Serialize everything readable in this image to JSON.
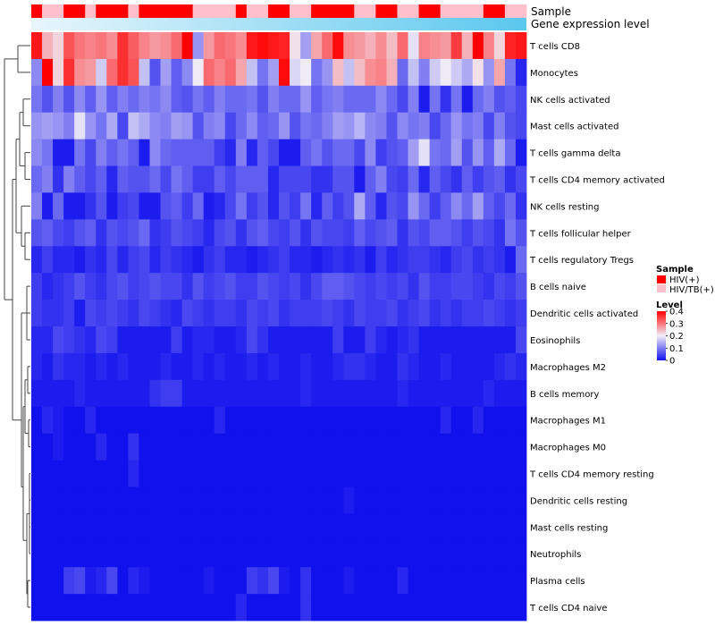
{
  "chart_data": {
    "type": "heatmap",
    "annotation_tracks": [
      "Sample",
      "Gene expression level"
    ],
    "rows": [
      "T cells CD8",
      "Monocytes",
      "NK cells activated",
      "Mast cells activated",
      "T cells gamma delta",
      "T cells CD4 memory activated",
      "NK cells resting",
      "T cells follicular helper",
      "T cells regulatory  Tregs",
      "B cells naive",
      "Dendritic cells activated",
      "Eosinophils",
      "Macrophages M2",
      "B cells memory",
      "Macrophages M1",
      "Macrophages M0",
      "T cells CD4 memory resting",
      "Dendritic cells resting",
      "Mast cells resting",
      "Neutrophils",
      "Plasma cells",
      "T cells CD4 naive"
    ],
    "sample_groups": [
      "HIV(+)",
      "HIV/TB(+)",
      "HIV/TB(+)",
      "HIV(+)",
      "HIV(+)",
      "HIV/TB(+)",
      "HIV(+)",
      "HIV(+)",
      "HIV(+)",
      "HIV/TB(+)",
      "HIV(+)",
      "HIV(+)",
      "HIV(+)",
      "HIV(+)",
      "HIV(+)",
      "HIV/TB(+)",
      "HIV/TB(+)",
      "HIV/TB(+)",
      "HIV/TB(+)",
      "HIV(+)",
      "HIV/TB(+)",
      "HIV/TB(+)",
      "HIV(+)",
      "HIV(+)",
      "HIV/TB(+)",
      "HIV/TB(+)",
      "HIV(+)",
      "HIV(+)",
      "HIV(+)",
      "HIV(+)",
      "HIV/TB(+)",
      "HIV/TB(+)",
      "HIV(+)",
      "HIV(+)",
      "HIV/TB(+)",
      "HIV/TB(+)",
      "HIV(+)",
      "HIV(+)",
      "HIV/TB(+)",
      "HIV/TB(+)",
      "HIV/TB(+)",
      "HIV/TB(+)",
      "HIV(+)",
      "HIV(+)",
      "HIV/TB(+)",
      "HIV/TB(+)"
    ],
    "values": [
      [
        0.38,
        0.25,
        0.22,
        0.33,
        0.3,
        0.29,
        0.3,
        0.28,
        0.36,
        0.32,
        0.29,
        0.27,
        0.28,
        0.31,
        0.4,
        0.12,
        0.27,
        0.31,
        0.3,
        0.28,
        0.38,
        0.39,
        0.38,
        0.37,
        0.21,
        0.13,
        0.26,
        0.31,
        0.39,
        0.28,
        0.27,
        0.25,
        0.28,
        0.24,
        0.31,
        0.19,
        0.29,
        0.28,
        0.27,
        0.35,
        0.25,
        0.4,
        0.29,
        0.22,
        0.37,
        0.38
      ],
      [
        0.11,
        0.4,
        0.22,
        0.36,
        0.28,
        0.27,
        0.17,
        0.31,
        0.36,
        0.33,
        0.16,
        0.06,
        0.13,
        0.07,
        0.11,
        0.2,
        0.31,
        0.29,
        0.31,
        0.26,
        0.16,
        0.09,
        0.13,
        0.39,
        0.18,
        0.2,
        0.09,
        0.12,
        0.24,
        0.16,
        0.24,
        0.28,
        0.29,
        0.25,
        0.08,
        0.16,
        0.1,
        0.17,
        0.2,
        0.17,
        0.14,
        0.21,
        0.12,
        0.26,
        0.09,
        0.02
      ],
      [
        0.09,
        0.06,
        0.1,
        0.06,
        0.11,
        0.07,
        0.12,
        0.07,
        0.1,
        0.08,
        0.1,
        0.09,
        0.11,
        0.07,
        0.06,
        0.09,
        0.07,
        0.1,
        0.08,
        0.08,
        0.09,
        0.06,
        0.1,
        0.08,
        0.08,
        0.12,
        0.07,
        0.09,
        0.1,
        0.08,
        0.08,
        0.08,
        0.11,
        0.08,
        0.05,
        0.1,
        0.01,
        0.09,
        0.03,
        0.09,
        0.01,
        0.08,
        0.1,
        0.06,
        0.07,
        0.05
      ],
      [
        0.12,
        0.13,
        0.12,
        0.1,
        0.19,
        0.12,
        0.09,
        0.14,
        0.05,
        0.16,
        0.14,
        0.11,
        0.1,
        0.13,
        0.12,
        0.06,
        0.1,
        0.11,
        0.05,
        0.08,
        0.11,
        0.07,
        0.08,
        0.12,
        0.06,
        0.09,
        0.08,
        0.1,
        0.13,
        0.12,
        0.15,
        0.11,
        0.1,
        0.06,
        0.11,
        0.09,
        0.1,
        0.05,
        0.08,
        0.12,
        0.09,
        0.1,
        0.05,
        0.1,
        0.06,
        0.05
      ],
      [
        0.11,
        0.09,
        0.01,
        0.01,
        0.09,
        0.05,
        0.1,
        0.07,
        0.09,
        0.07,
        0.01,
        0.11,
        0.08,
        0.07,
        0.07,
        0.07,
        0.07,
        0.04,
        0.02,
        0.1,
        0.02,
        0.07,
        0.05,
        0.01,
        0.01,
        0.07,
        0.09,
        0.06,
        0.08,
        0.08,
        0.05,
        0.11,
        0.04,
        0.06,
        0.07,
        0.13,
        0.19,
        0.09,
        0.08,
        0.13,
        0.06,
        0.12,
        0.07,
        0.14,
        0.08,
        0.01
      ],
      [
        0.08,
        0.1,
        0.03,
        0.1,
        0.07,
        0.05,
        0.07,
        0.02,
        0.07,
        0.06,
        0.06,
        0.08,
        0.05,
        0.09,
        0.07,
        0.04,
        0.04,
        0.07,
        0.05,
        0.07,
        0.07,
        0.07,
        0.02,
        0.05,
        0.05,
        0.05,
        0.03,
        0.03,
        0.06,
        0.06,
        0.01,
        0.07,
        0.1,
        0.05,
        0.04,
        0.08,
        0.02,
        0.07,
        0.05,
        0.03,
        0.07,
        0.04,
        0.06,
        0.07,
        0.03,
        0.05
      ],
      [
        0.1,
        0.01,
        0.08,
        0.01,
        0.01,
        0.03,
        0.06,
        0.01,
        0.04,
        0.05,
        0.01,
        0.01,
        0.06,
        0.07,
        0.04,
        0.08,
        0.01,
        0.02,
        0.05,
        0.09,
        0.04,
        0.06,
        0.02,
        0.06,
        0.04,
        0.09,
        0.02,
        0.07,
        0.04,
        0.06,
        0.14,
        0.07,
        0.02,
        0.06,
        0.05,
        0.12,
        0.08,
        0.04,
        0.07,
        0.11,
        0.08,
        0.13,
        0.07,
        0.05,
        0.08,
        0.03
      ],
      [
        0.06,
        0.07,
        0.05,
        0.04,
        0.06,
        0.07,
        0.03,
        0.06,
        0.05,
        0.06,
        0.08,
        0.03,
        0.04,
        0.06,
        0.05,
        0.04,
        0.02,
        0.05,
        0.06,
        0.03,
        0.06,
        0.07,
        0.05,
        0.04,
        0.06,
        0.03,
        0.06,
        0.05,
        0.05,
        0.04,
        0.07,
        0.05,
        0.06,
        0.07,
        0.03,
        0.06,
        0.05,
        0.07,
        0.07,
        0.06,
        0.04,
        0.06,
        0.05,
        0.03,
        0.09,
        0.06
      ],
      [
        0.02,
        0.04,
        0.02,
        0.02,
        0.01,
        0.03,
        0.02,
        0.05,
        0.02,
        0.04,
        0.05,
        0.02,
        0.04,
        0.03,
        0.02,
        0.01,
        0.03,
        0.04,
        0.02,
        0.02,
        0.01,
        0.02,
        0.03,
        0.04,
        0.02,
        0.02,
        0.01,
        0.02,
        0.03,
        0.02,
        0.03,
        0.01,
        0.04,
        0.02,
        0.03,
        0.04,
        0.04,
        0.03,
        0.02,
        0.04,
        0.05,
        0.03,
        0.04,
        0.03,
        0.01,
        0.08
      ],
      [
        0.04,
        0.02,
        0.03,
        0.04,
        0.06,
        0.04,
        0.03,
        0.05,
        0.06,
        0.04,
        0.05,
        0.06,
        0.05,
        0.05,
        0.03,
        0.06,
        0.04,
        0.05,
        0.06,
        0.04,
        0.04,
        0.06,
        0.05,
        0.04,
        0.05,
        0.03,
        0.05,
        0.07,
        0.07,
        0.06,
        0.05,
        0.04,
        0.05,
        0.04,
        0.05,
        0.03,
        0.06,
        0.04,
        0.04,
        0.05,
        0.05,
        0.04,
        0.03,
        0.05,
        0.04,
        0.06
      ],
      [
        0.04,
        0.03,
        0.03,
        0.04,
        0.01,
        0.05,
        0.04,
        0.05,
        0.04,
        0.03,
        0.05,
        0.04,
        0.03,
        0.02,
        0.05,
        0.04,
        0.03,
        0.04,
        0.04,
        0.03,
        0.05,
        0.04,
        0.05,
        0.03,
        0.04,
        0.04,
        0.04,
        0.05,
        0.04,
        0.03,
        0.05,
        0.04,
        0.04,
        0.05,
        0.03,
        0.04,
        0.05,
        0.03,
        0.04,
        0.03,
        0.04,
        0.04,
        0.05,
        0.04,
        0.03,
        0.04
      ],
      [
        0.02,
        0.02,
        0.05,
        0.04,
        0.03,
        0.02,
        0.05,
        0.04,
        0.01,
        0.01,
        0.01,
        0.01,
        0.01,
        0.04,
        0.01,
        0.02,
        0.02,
        0.01,
        0.01,
        0.02,
        0.05,
        0.03,
        0.01,
        0.01,
        0.01,
        0.01,
        0.01,
        0.01,
        0.04,
        0.01,
        0.01,
        0.04,
        0.02,
        0.01,
        0.02,
        0.03,
        0.01,
        0.01,
        0.01,
        0.01,
        0.01,
        0.01,
        0.01,
        0.01,
        0.01,
        0.05
      ],
      [
        0.02,
        0.01,
        0.03,
        0.02,
        0.02,
        0.01,
        0.02,
        0.01,
        0.02,
        0.01,
        0.01,
        0.01,
        0.02,
        0.01,
        0.01,
        0.02,
        0.01,
        0.02,
        0.01,
        0.01,
        0.02,
        0.01,
        0.02,
        0.01,
        0.01,
        0.02,
        0.01,
        0.01,
        0.02,
        0.03,
        0.03,
        0.02,
        0.01,
        0.01,
        0.03,
        0.02,
        0.01,
        0.01,
        0.02,
        0.01,
        0.01,
        0.01,
        0.01,
        0.02,
        0.03,
        0.02
      ],
      [
        0.01,
        0.01,
        0.01,
        0.01,
        0.02,
        0.01,
        0.01,
        0.01,
        0.01,
        0.01,
        0.01,
        0.03,
        0.04,
        0.04,
        0.01,
        0.01,
        0.01,
        0.01,
        0.01,
        0.01,
        0.01,
        0.01,
        0.01,
        0.01,
        0.01,
        0.02,
        0.01,
        0.01,
        0.01,
        0.01,
        0.01,
        0.01,
        0.01,
        0.01,
        0.02,
        0.01,
        0.01,
        0.01,
        0.01,
        0.01,
        0.01,
        0.01,
        0.02,
        0.01,
        0.01,
        0.01
      ],
      [
        0.0,
        0.02,
        0.01,
        0.0,
        0.0,
        0.02,
        0.0,
        0.0,
        0.0,
        0.0,
        0.0,
        0.0,
        0.0,
        0.0,
        0.0,
        0.0,
        0.0,
        0.02,
        0.0,
        0.0,
        0.0,
        0.0,
        0.0,
        0.0,
        0.0,
        0.0,
        0.0,
        0.0,
        0.0,
        0.0,
        0.0,
        0.0,
        0.0,
        0.0,
        0.0,
        0.0,
        0.0,
        0.0,
        0.02,
        0.0,
        0.0,
        0.02,
        0.0,
        0.0,
        0.0,
        0.0
      ],
      [
        0.0,
        0.0,
        0.01,
        0.0,
        0.0,
        0.0,
        0.02,
        0.0,
        0.0,
        0.03,
        0.0,
        0.0,
        0.0,
        0.0,
        0.0,
        0.0,
        0.0,
        0.0,
        0.0,
        0.0,
        0.0,
        0.0,
        0.0,
        0.0,
        0.0,
        0.0,
        0.0,
        0.0,
        0.0,
        0.0,
        0.0,
        0.0,
        0.0,
        0.0,
        0.0,
        0.0,
        0.0,
        0.0,
        0.0,
        0.0,
        0.0,
        0.0,
        0.0,
        0.0,
        0.0,
        0.0
      ],
      [
        0.0,
        0.0,
        0.0,
        0.0,
        0.0,
        0.0,
        0.0,
        0.0,
        0.0,
        0.02,
        0.0,
        0.0,
        0.0,
        0.0,
        0.0,
        0.0,
        0.0,
        0.0,
        0.0,
        0.0,
        0.0,
        0.0,
        0.0,
        0.0,
        0.0,
        0.0,
        0.0,
        0.0,
        0.0,
        0.0,
        0.0,
        0.0,
        0.0,
        0.0,
        0.0,
        0.0,
        0.0,
        0.0,
        0.0,
        0.0,
        0.0,
        0.0,
        0.0,
        0.0,
        0.0,
        0.0
      ],
      [
        0.0,
        0.0,
        0.0,
        0.0,
        0.0,
        0.0,
        0.0,
        0.0,
        0.0,
        0.0,
        0.0,
        0.0,
        0.0,
        0.0,
        0.0,
        0.0,
        0.0,
        0.0,
        0.0,
        0.0,
        0.0,
        0.0,
        0.0,
        0.0,
        0.0,
        0.0,
        0.0,
        0.0,
        0.0,
        0.01,
        0.0,
        0.0,
        0.0,
        0.0,
        0.0,
        0.0,
        0.0,
        0.0,
        0.0,
        0.0,
        0.0,
        0.0,
        0.0,
        0.0,
        0.0,
        0.0
      ],
      [
        0.0,
        0.0,
        0.0,
        0.0,
        0.0,
        0.0,
        0.0,
        0.0,
        0.0,
        0.0,
        0.0,
        0.0,
        0.0,
        0.0,
        0.0,
        0.0,
        0.0,
        0.0,
        0.0,
        0.0,
        0.0,
        0.0,
        0.0,
        0.0,
        0.0,
        0.0,
        0.0,
        0.0,
        0.0,
        0.0,
        0.0,
        0.0,
        0.0,
        0.0,
        0.0,
        0.0,
        0.0,
        0.0,
        0.0,
        0.0,
        0.0,
        0.0,
        0.0,
        0.0,
        0.0,
        0.0
      ],
      [
        0.0,
        0.0,
        0.0,
        0.0,
        0.0,
        0.0,
        0.0,
        0.0,
        0.0,
        0.0,
        0.0,
        0.0,
        0.0,
        0.0,
        0.0,
        0.0,
        0.0,
        0.0,
        0.0,
        0.0,
        0.0,
        0.0,
        0.0,
        0.0,
        0.0,
        0.0,
        0.0,
        0.0,
        0.0,
        0.0,
        0.0,
        0.0,
        0.0,
        0.0,
        0.0,
        0.0,
        0.0,
        0.0,
        0.0,
        0.0,
        0.0,
        0.0,
        0.0,
        0.0,
        0.0,
        0.0
      ],
      [
        0.0,
        0.0,
        0.0,
        0.04,
        0.05,
        0.01,
        0.02,
        0.05,
        0.0,
        0.02,
        0.01,
        0.0,
        0.0,
        0.0,
        0.0,
        0.0,
        0.01,
        0.0,
        0.0,
        0.0,
        0.04,
        0.03,
        0.05,
        0.01,
        0.0,
        0.03,
        0.0,
        0.0,
        0.0,
        0.01,
        0.0,
        0.0,
        0.0,
        0.0,
        0.02,
        0.0,
        0.0,
        0.0,
        0.0,
        0.0,
        0.0,
        0.0,
        0.0,
        0.0,
        0.0,
        0.0
      ],
      [
        0.0,
        0.0,
        0.0,
        0.0,
        0.0,
        0.0,
        0.0,
        0.0,
        0.0,
        0.0,
        0.0,
        0.0,
        0.0,
        0.0,
        0.0,
        0.0,
        0.0,
        0.0,
        0.0,
        0.02,
        0.0,
        0.0,
        0.0,
        0.0,
        0.0,
        0.03,
        0.0,
        0.0,
        0.0,
        0.0,
        0.0,
        0.0,
        0.0,
        0.0,
        0.0,
        0.0,
        0.0,
        0.0,
        0.0,
        0.0,
        0.0,
        0.0,
        0.0,
        0.0,
        0.0,
        0.0
      ]
    ],
    "color_scale": {
      "min": 0,
      "max": 0.4,
      "stops": [
        {
          "value": 0,
          "color": "#1111EE"
        },
        {
          "value": 0.2,
          "color": "#F0ECF6"
        },
        {
          "value": 0.4,
          "color": "#FF0000"
        }
      ]
    },
    "legend": {
      "sample_title": "Sample",
      "sample_entries": [
        {
          "label": "HIV(+)",
          "color": "#FF0000"
        },
        {
          "label": "HIV/TB(+)",
          "color": "#FFC0CB"
        }
      ],
      "level_title": "Level",
      "level_ticks": [
        "0.4",
        "0.3",
        "0.2",
        "0.1",
        "0"
      ],
      "level_tick_values": [
        0.4,
        0.3,
        0.2,
        0.1,
        0
      ]
    },
    "gene_expression_gradient": [
      "#E8F6FC",
      "#5BC8EE"
    ]
  }
}
